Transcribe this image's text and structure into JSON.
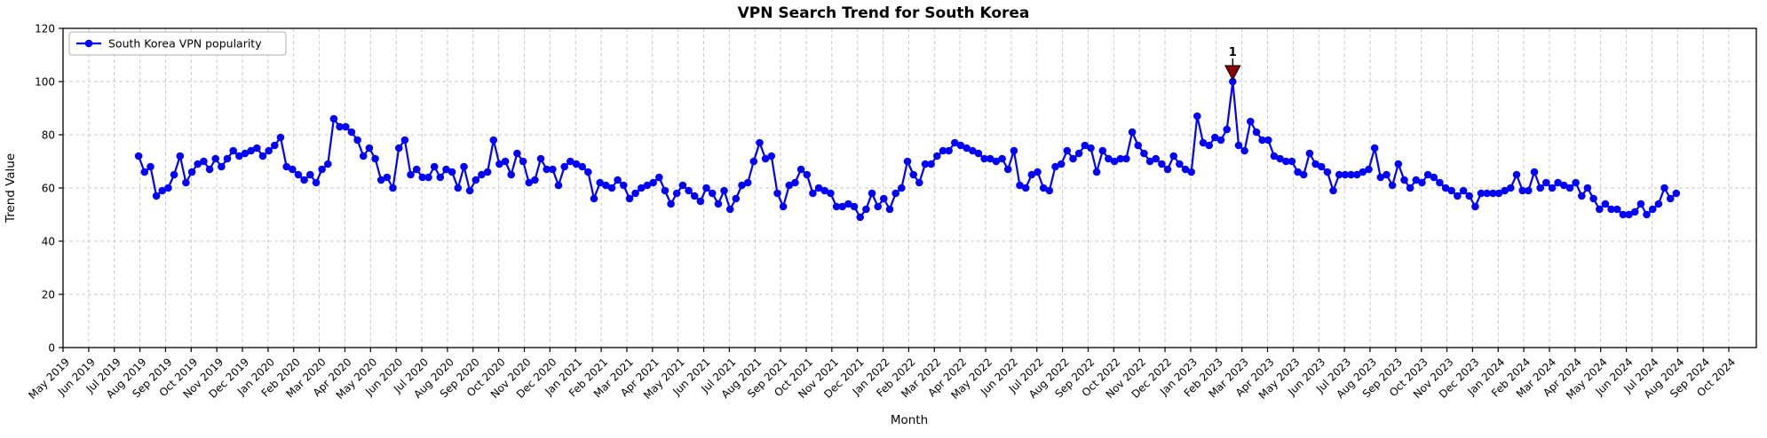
{
  "figure": {
    "title": "VPN Search Trend for South Korea",
    "background": "#ffffff"
  },
  "chart_data": {
    "type": "line",
    "title": "VPN Search Trend for South Korea",
    "xlabel": "Month",
    "ylabel": "Trend Value",
    "ylim": [
      0,
      120
    ],
    "y_ticks": [
      0,
      20,
      40,
      60,
      80,
      100,
      120
    ],
    "grid": true,
    "grid_style": "dashed",
    "x_tick_labels": [
      "May 2019",
      "Jun 2019",
      "Jul 2019",
      "Aug 2019",
      "Sep 2019",
      "Oct 2019",
      "Nov 2019",
      "Dec 2019",
      "Jan 2020",
      "Feb 2020",
      "Mar 2020",
      "Apr 2020",
      "May 2020",
      "Jun 2020",
      "Jul 2020",
      "Aug 2020",
      "Sep 2020",
      "Oct 2020",
      "Nov 2020",
      "Dec 2020",
      "Jan 2021",
      "Feb 2021",
      "Mar 2021",
      "Apr 2021",
      "May 2021",
      "Jun 2021",
      "Jul 2021",
      "Aug 2021",
      "Sep 2021",
      "Oct 2021",
      "Nov 2021",
      "Dec 2021",
      "Jan 2022",
      "Feb 2022",
      "Mar 2022",
      "Apr 2022",
      "May 2022",
      "Jun 2022",
      "Jul 2022",
      "Aug 2022",
      "Sep 2022",
      "Oct 2022",
      "Nov 2022",
      "Dec 2022",
      "Jan 2023",
      "Feb 2023",
      "Mar 2023",
      "Apr 2023",
      "May 2023",
      "Jun 2023",
      "Jul 2023",
      "Aug 2023",
      "Sep 2023",
      "Oct 2023",
      "Nov 2023",
      "Dec 2023",
      "Jan 2024",
      "Feb 2024",
      "Mar 2024",
      "Apr 2024",
      "May 2024",
      "Jun 2024",
      "Jul 2024",
      "Aug 2024",
      "Sep 2024",
      "Oct 2024"
    ],
    "legend": {
      "label": "South Korea VPN popularity",
      "position": "upper left"
    },
    "x_mapping": {
      "start_month_offset": 2.95,
      "months_per_week": 0.23077
    },
    "series": [
      {
        "name": "South Korea VPN popularity",
        "color": "#0000ff",
        "marker": "circle",
        "values": [
          72,
          66,
          68,
          57,
          59,
          60,
          65,
          72,
          62,
          66,
          69,
          70,
          67,
          71,
          68,
          71,
          74,
          72,
          73,
          74,
          75,
          72,
          74,
          76,
          79,
          68,
          67,
          65,
          63,
          65,
          62,
          67,
          69,
          86,
          83,
          83,
          81,
          78,
          72,
          75,
          71,
          63,
          64,
          60,
          75,
          78,
          65,
          67,
          64,
          64,
          68,
          64,
          67,
          66,
          60,
          68,
          59,
          63,
          65,
          66,
          78,
          69,
          70,
          65,
          73,
          70,
          62,
          63,
          71,
          67,
          67,
          61,
          68,
          70,
          69,
          68,
          66,
          56,
          62,
          61,
          60,
          63,
          61,
          56,
          58,
          60,
          61,
          62,
          64,
          59,
          54,
          58,
          61,
          59,
          57,
          55,
          60,
          58,
          54,
          59,
          52,
          56,
          61,
          62,
          70,
          77,
          71,
          72,
          58,
          53,
          61,
          62,
          67,
          65,
          58,
          60,
          59,
          58,
          53,
          53,
          54,
          53,
          49,
          52,
          58,
          53,
          56,
          52,
          58,
          60,
          70,
          65,
          62,
          69,
          69,
          72,
          74,
          74,
          77,
          76,
          75,
          74,
          73,
          71,
          71,
          70,
          71,
          67,
          74,
          61,
          60,
          65,
          66,
          60,
          59,
          68,
          69,
          74,
          71,
          73,
          76,
          75,
          66,
          74,
          71,
          70,
          71,
          71,
          81,
          76,
          73,
          70,
          71,
          69,
          67,
          72,
          69,
          67,
          66,
          87,
          77,
          76,
          79,
          78,
          82,
          100,
          76,
          74,
          85,
          81,
          78,
          78,
          72,
          71,
          70,
          70,
          66,
          65,
          73,
          69,
          68,
          66,
          59,
          65,
          65,
          65,
          65,
          66,
          67,
          75,
          64,
          65,
          61,
          69,
          63,
          60,
          63,
          62,
          65,
          64,
          62,
          60,
          59,
          57,
          59,
          57,
          53,
          58,
          58,
          58,
          58,
          59,
          60,
          65,
          59,
          59,
          66,
          60,
          62,
          60,
          62,
          61,
          60,
          62,
          57,
          60,
          56,
          52,
          54,
          52,
          52,
          50,
          50,
          51,
          54,
          50,
          52,
          54,
          60,
          56,
          58
        ]
      }
    ],
    "annotations": [
      {
        "text": "1",
        "point_index": 185,
        "value": 100,
        "marker": "triangle-down",
        "color": "#8b0000"
      }
    ],
    "colors": {
      "line": "#0000ff",
      "annotation": "#8b0000",
      "grid": "#c9c9c9",
      "axis": "#000000",
      "legend_border": "#b0b0b0",
      "background": "#ffffff"
    }
  }
}
